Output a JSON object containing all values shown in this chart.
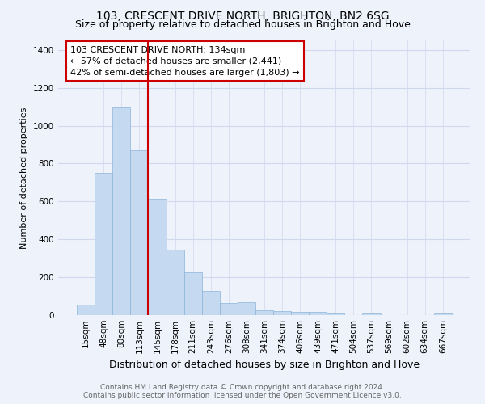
{
  "title": "103, CRESCENT DRIVE NORTH, BRIGHTON, BN2 6SG",
  "subtitle": "Size of property relative to detached houses in Brighton and Hove",
  "xlabel": "Distribution of detached houses by size in Brighton and Hove",
  "ylabel": "Number of detached properties",
  "categories": [
    "15sqm",
    "48sqm",
    "80sqm",
    "113sqm",
    "145sqm",
    "178sqm",
    "211sqm",
    "243sqm",
    "276sqm",
    "308sqm",
    "341sqm",
    "374sqm",
    "406sqm",
    "439sqm",
    "471sqm",
    "504sqm",
    "537sqm",
    "569sqm",
    "602sqm",
    "634sqm",
    "667sqm"
  ],
  "values": [
    55,
    750,
    1095,
    870,
    615,
    345,
    228,
    130,
    65,
    70,
    25,
    20,
    18,
    15,
    12,
    0,
    13,
    0,
    0,
    0,
    13
  ],
  "bar_color": "#c5d9f0",
  "bar_edge_color": "#8ab4d8",
  "vline_color": "#cc0000",
  "annotation_text": "103 CRESCENT DRIVE NORTH: 134sqm\n← 57% of detached houses are smaller (2,441)\n42% of semi-detached houses are larger (1,803) →",
  "annotation_box_color": "#ffffff",
  "annotation_box_edge_color": "#cc0000",
  "ylim": [
    0,
    1450
  ],
  "yticks": [
    0,
    200,
    400,
    600,
    800,
    1000,
    1200,
    1400
  ],
  "footer": "Contains HM Land Registry data © Crown copyright and database right 2024.\nContains public sector information licensed under the Open Government Licence v3.0.",
  "bg_color": "#eef2fb",
  "grid_color": "#d0d8ee",
  "title_fontsize": 10,
  "subtitle_fontsize": 9,
  "ylabel_fontsize": 8,
  "xlabel_fontsize": 9,
  "tick_fontsize": 7.5,
  "footer_fontsize": 6.5,
  "footer_color": "#666666"
}
